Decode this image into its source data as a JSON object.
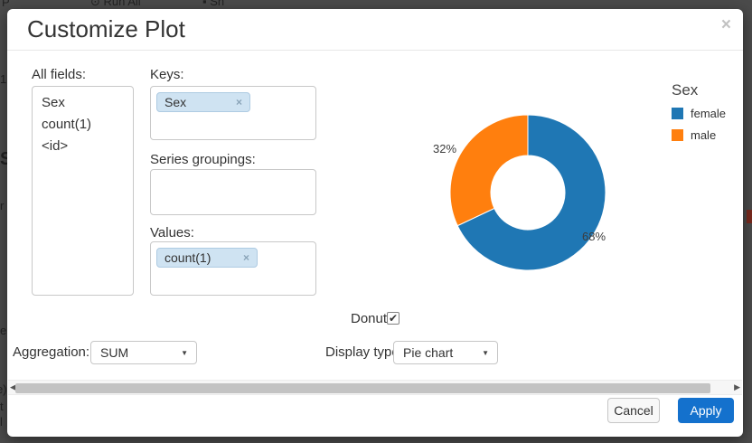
{
  "background": {
    "top_fragments": [
      {
        "text": "P"
      },
      {
        "text": "⊙ Run All"
      },
      {
        "text": "▪ Sh"
      }
    ],
    "left_fragments": [
      {
        "text": "1"
      },
      {
        "text": "S"
      },
      {
        "text": "r"
      },
      {
        "text": "e"
      },
      {
        "text": "e)"
      },
      {
        "text": "t"
      },
      {
        "text": "l"
      }
    ]
  },
  "modal": {
    "title": "Customize Plot",
    "close_label": "×",
    "all_fields": {
      "label": "All fields:",
      "items": [
        "Sex",
        "count(1)",
        "<id>"
      ]
    },
    "keys": {
      "label": "Keys:",
      "tags": [
        {
          "text": "Sex",
          "remove_label": "×"
        }
      ]
    },
    "series_groupings": {
      "label": "Series groupings:",
      "tags": []
    },
    "values": {
      "label": "Values:",
      "tags": [
        {
          "text": "count(1)",
          "remove_label": "×"
        }
      ]
    },
    "donut_checkbox": {
      "label": "Donut",
      "checked": true,
      "check_glyph": "✔"
    },
    "aggregation": {
      "label": "Aggregation:",
      "value": "SUM",
      "caret": "▼"
    },
    "display_type": {
      "label": "Display type:",
      "value": "Pie chart",
      "caret": "▼"
    },
    "scrollbar": {
      "left_arrow": "◀",
      "right_arrow": "▶"
    },
    "footer": {
      "cancel_label": "Cancel",
      "apply_label": "Apply"
    }
  },
  "chart_data": {
    "type": "pie",
    "donut": true,
    "legend_title": "Sex",
    "labels": [
      "female",
      "male"
    ],
    "values": [
      68,
      32
    ],
    "unit": "percent",
    "colors": [
      "#1f77b4",
      "#ff7f0e"
    ],
    "annotations": [
      "68%",
      "32%"
    ],
    "start_angle_deg": 0,
    "direction": "clockwise",
    "legend_position": "top-right",
    "outer_radius_px": 86,
    "inner_radius_px": 41
  }
}
